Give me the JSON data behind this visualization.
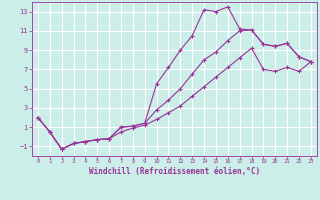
{
  "xlabel": "Windchill (Refroidissement éolien,°C)",
  "bg_color": "#cceee8",
  "grid_color": "#ffffff",
  "line_color": "#993399",
  "xlim": [
    -0.5,
    23.5
  ],
  "ylim": [
    -2,
    14
  ],
  "xticks": [
    0,
    1,
    2,
    3,
    4,
    5,
    6,
    7,
    8,
    9,
    10,
    11,
    12,
    13,
    14,
    15,
    16,
    17,
    18,
    19,
    20,
    21,
    22,
    23
  ],
  "yticks": [
    -1,
    1,
    3,
    5,
    7,
    9,
    11,
    13
  ],
  "line1_x": [
    0,
    1,
    2,
    3,
    4,
    5,
    6,
    7,
    8,
    9,
    10,
    11,
    12,
    13,
    14,
    15,
    16,
    17,
    18,
    19,
    20,
    21,
    22,
    23
  ],
  "line1_y": [
    2.0,
    0.5,
    -1.3,
    -0.7,
    -0.5,
    -0.3,
    -0.2,
    1.0,
    1.1,
    1.4,
    5.5,
    7.2,
    9.0,
    10.5,
    13.2,
    13.0,
    13.5,
    11.2,
    11.1,
    9.6,
    9.4,
    9.7,
    8.3,
    7.8
  ],
  "line2_x": [
    0,
    1,
    2,
    3,
    4,
    5,
    6,
    7,
    8,
    9,
    10,
    11,
    12,
    13,
    14,
    15,
    16,
    17,
    18,
    19,
    20,
    21,
    22,
    23
  ],
  "line2_y": [
    2.0,
    0.5,
    -1.3,
    -0.7,
    -0.5,
    -0.3,
    -0.2,
    1.0,
    1.1,
    1.4,
    2.8,
    3.8,
    5.0,
    6.5,
    8.0,
    8.8,
    10.0,
    11.0,
    11.1,
    9.6,
    9.4,
    9.7,
    8.3,
    7.8
  ],
  "line3_x": [
    0,
    1,
    2,
    3,
    4,
    5,
    6,
    7,
    8,
    9,
    10,
    11,
    12,
    13,
    14,
    15,
    16,
    17,
    18,
    19,
    20,
    21,
    22,
    23
  ],
  "line3_y": [
    2.0,
    0.5,
    -1.3,
    -0.7,
    -0.5,
    -0.3,
    -0.2,
    0.5,
    0.9,
    1.2,
    1.8,
    2.5,
    3.2,
    4.2,
    5.2,
    6.2,
    7.2,
    8.2,
    9.2,
    7.0,
    6.8,
    7.2,
    6.8,
    7.8
  ]
}
